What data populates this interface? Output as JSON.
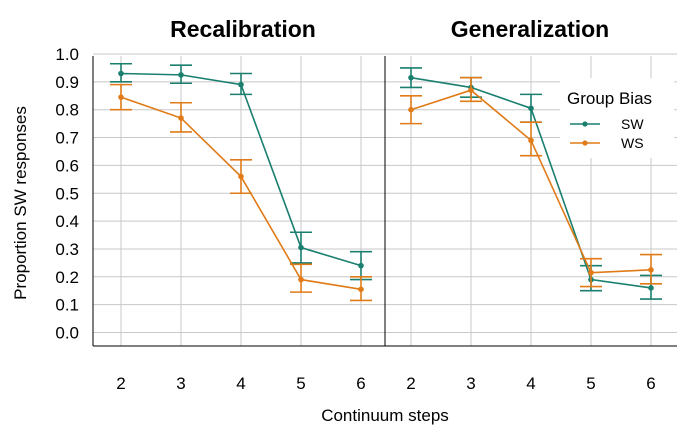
{
  "chart_data": {
    "type": "line",
    "xlabel": "Continuum steps",
    "ylabel": "Proportion SW responses",
    "ylim": [
      0.0,
      1.0
    ],
    "yticks": [
      "0.0",
      "0.1",
      "0.2",
      "0.3",
      "0.4",
      "0.5",
      "0.6",
      "0.7",
      "0.8",
      "0.9",
      "1.0"
    ],
    "categories": [
      "2",
      "3",
      "4",
      "5",
      "6"
    ],
    "legend": {
      "title": "Group Bias",
      "position": "top-right",
      "entries": [
        {
          "name": "SW",
          "color": "#1a7f6e"
        },
        {
          "name": "WS",
          "color": "#e07b18"
        }
      ]
    },
    "panels": [
      {
        "title": "Recalibration",
        "series": [
          {
            "name": "SW",
            "color": "#1a7f6e",
            "values": [
              0.93,
              0.925,
              0.89,
              0.305,
              0.24
            ],
            "lower": [
              0.9,
              0.895,
              0.855,
              0.25,
              0.19
            ],
            "upper": [
              0.965,
              0.96,
              0.93,
              0.36,
              0.29
            ]
          },
          {
            "name": "WS",
            "color": "#e07b18",
            "values": [
              0.845,
              0.77,
              0.56,
              0.19,
              0.155
            ],
            "lower": [
              0.8,
              0.72,
              0.5,
              0.145,
              0.115
            ],
            "upper": [
              0.89,
              0.825,
              0.62,
              0.245,
              0.2
            ]
          }
        ]
      },
      {
        "title": "Generalization",
        "series": [
          {
            "name": "SW",
            "color": "#1a7f6e",
            "values": [
              0.915,
              0.88,
              0.805,
              0.19,
              0.16
            ],
            "lower": [
              0.88,
              0.845,
              0.755,
              0.15,
              0.12
            ],
            "upper": [
              0.95,
              0.915,
              0.855,
              0.24,
              0.205
            ]
          },
          {
            "name": "WS",
            "color": "#e07b18",
            "values": [
              0.8,
              0.87,
              0.69,
              0.215,
              0.225
            ],
            "lower": [
              0.75,
              0.83,
              0.635,
              0.165,
              0.175
            ],
            "upper": [
              0.85,
              0.915,
              0.755,
              0.265,
              0.28
            ]
          }
        ]
      }
    ]
  }
}
